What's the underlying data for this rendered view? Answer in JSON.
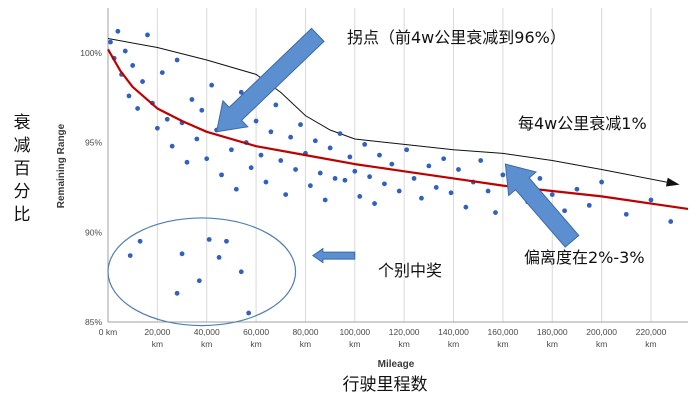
{
  "chart_data": {
    "type": "scatter",
    "xlabel": "Mileage",
    "ylabel": "Remaining Range",
    "xlim": [
      0,
      235000
    ],
    "ylim": [
      85,
      102.5
    ],
    "xticks": [
      0,
      20000,
      40000,
      60000,
      80000,
      100000,
      120000,
      140000,
      160000,
      180000,
      200000,
      220000
    ],
    "xtick_labels": [
      "0 km",
      "20,000 km",
      "40,000 km",
      "60,000 km",
      "80,000 km",
      "100,000 km",
      "120,000 km",
      "140,000 km",
      "160,000 km",
      "180,000 km",
      "200,000 km",
      "220,000 km"
    ],
    "yticks": [
      85,
      90,
      95,
      100
    ],
    "ytick_labels": [
      "85%",
      "90%",
      "95%",
      "100%"
    ],
    "grid": "vertical",
    "colors": {
      "points": "#3060c0",
      "trend": "#c00000",
      "arrow_fill": "#5b8fd0",
      "arrow_stroke": "#3b6aa8",
      "ellipse": "#4f7fb0"
    },
    "series": [
      {
        "type": "scatter",
        "points": [
          [
            1000,
            100.6
          ],
          [
            2500,
            99.7
          ],
          [
            4000,
            101.2
          ],
          [
            5500,
            98.8
          ],
          [
            7000,
            100.1
          ],
          [
            8500,
            97.6
          ],
          [
            10000,
            99.3
          ],
          [
            12000,
            96.9
          ],
          [
            14000,
            98.4
          ],
          [
            16000,
            101.0
          ],
          [
            18000,
            97.2
          ],
          [
            20000,
            95.8
          ],
          [
            22000,
            98.9
          ],
          [
            24000,
            96.3
          ],
          [
            26000,
            94.8
          ],
          [
            28000,
            99.6
          ],
          [
            30000,
            96.1
          ],
          [
            32000,
            93.9
          ],
          [
            34000,
            97.4
          ],
          [
            36000,
            95.2
          ],
          [
            38000,
            96.8
          ],
          [
            40000,
            94.1
          ],
          [
            42000,
            98.2
          ],
          [
            44000,
            95.7
          ],
          [
            46000,
            93.2
          ],
          [
            48000,
            96.5
          ],
          [
            50000,
            94.6
          ],
          [
            52000,
            92.4
          ],
          [
            54000,
            97.8
          ],
          [
            56000,
            95.0
          ],
          [
            58000,
            93.6
          ],
          [
            60000,
            96.2
          ],
          [
            62000,
            94.3
          ],
          [
            64000,
            92.8
          ],
          [
            66000,
            95.6
          ],
          [
            68000,
            97.1
          ],
          [
            70000,
            94.0
          ],
          [
            72000,
            92.1
          ],
          [
            74000,
            95.3
          ],
          [
            76000,
            93.5
          ],
          [
            78000,
            96.0
          ],
          [
            80000,
            94.4
          ],
          [
            82000,
            92.6
          ],
          [
            84000,
            95.1
          ],
          [
            86000,
            93.3
          ],
          [
            88000,
            91.8
          ],
          [
            90000,
            94.7
          ],
          [
            92000,
            93.0
          ],
          [
            94000,
            95.5
          ],
          [
            96000,
            92.9
          ],
          [
            98000,
            94.2
          ],
          [
            100000,
            93.4
          ],
          [
            102000,
            92.0
          ],
          [
            104000,
            94.9
          ],
          [
            106000,
            93.1
          ],
          [
            108000,
            91.6
          ],
          [
            110000,
            94.3
          ],
          [
            112000,
            92.7
          ],
          [
            115000,
            93.8
          ],
          [
            118000,
            92.3
          ],
          [
            121000,
            94.6
          ],
          [
            124000,
            93.0
          ],
          [
            127000,
            91.9
          ],
          [
            130000,
            93.7
          ],
          [
            133000,
            92.5
          ],
          [
            136000,
            94.1
          ],
          [
            139000,
            92.2
          ],
          [
            142000,
            93.5
          ],
          [
            145000,
            91.4
          ],
          [
            148000,
            92.8
          ],
          [
            151000,
            94.0
          ],
          [
            154000,
            92.3
          ],
          [
            157000,
            91.1
          ],
          [
            160000,
            93.2
          ],
          [
            165000,
            92.6
          ],
          [
            170000,
            91.7
          ],
          [
            175000,
            93.0
          ],
          [
            180000,
            92.1
          ],
          [
            185000,
            91.2
          ],
          [
            190000,
            92.4
          ],
          [
            195000,
            91.5
          ],
          [
            200000,
            92.8
          ],
          [
            210000,
            91.0
          ],
          [
            220000,
            91.8
          ],
          [
            228000,
            90.6
          ],
          [
            13000,
            89.5
          ],
          [
            9000,
            88.7
          ],
          [
            30000,
            88.8
          ],
          [
            37000,
            87.3
          ],
          [
            45000,
            88.6
          ],
          [
            54000,
            87.8
          ],
          [
            28000,
            86.6
          ],
          [
            57000,
            85.5
          ],
          [
            41000,
            89.6
          ],
          [
            48000,
            89.5
          ]
        ]
      },
      {
        "type": "line",
        "points": [
          [
            0,
            100.2
          ],
          [
            5000,
            99.0
          ],
          [
            10000,
            98.1
          ],
          [
            20000,
            96.9
          ],
          [
            30000,
            96.2
          ],
          [
            40000,
            95.6
          ],
          [
            60000,
            94.8
          ],
          [
            80000,
            94.3
          ],
          [
            100000,
            93.8
          ],
          [
            120000,
            93.4
          ],
          [
            140000,
            93.0
          ],
          [
            160000,
            92.6
          ],
          [
            180000,
            92.3
          ],
          [
            200000,
            92.0
          ],
          [
            220000,
            91.6
          ],
          [
            235000,
            91.3
          ]
        ]
      }
    ],
    "upper_envelope": [
      [
        0,
        100.8
      ],
      [
        20000,
        100.3
      ],
      [
        40000,
        99.6
      ],
      [
        60000,
        98.8
      ],
      [
        70000,
        97.8
      ],
      [
        80000,
        96.5
      ],
      [
        90000,
        95.7
      ],
      [
        100000,
        95.2
      ],
      [
        120000,
        94.9
      ],
      [
        140000,
        94.6
      ],
      [
        160000,
        94.4
      ],
      [
        180000,
        94.0
      ],
      [
        200000,
        93.5
      ],
      [
        230000,
        92.7
      ]
    ],
    "outlier_cluster": {
      "center": [
        38000,
        87.8
      ],
      "rx": 38000,
      "ry": 3.0
    },
    "arrows": [
      {
        "from": [
          85000,
          101.0
        ],
        "to": [
          44000,
          95.6
        ]
      },
      {
        "from": [
          188000,
          89.5
        ],
        "to": [
          161000,
          93.8
        ]
      },
      {
        "from": [
          100000,
          88.7
        ],
        "to": [
          83000,
          88.7
        ]
      }
    ],
    "annotations": {
      "inflection": "拐点（前4w公里衰减到96%）",
      "per_40k": "每4w公里衰减1%",
      "deviation": "偏离度在2%-3%",
      "outliers": "个别中奖"
    },
    "big_labels": {
      "y": "衰减百分比",
      "x": "行驶里程数"
    }
  }
}
